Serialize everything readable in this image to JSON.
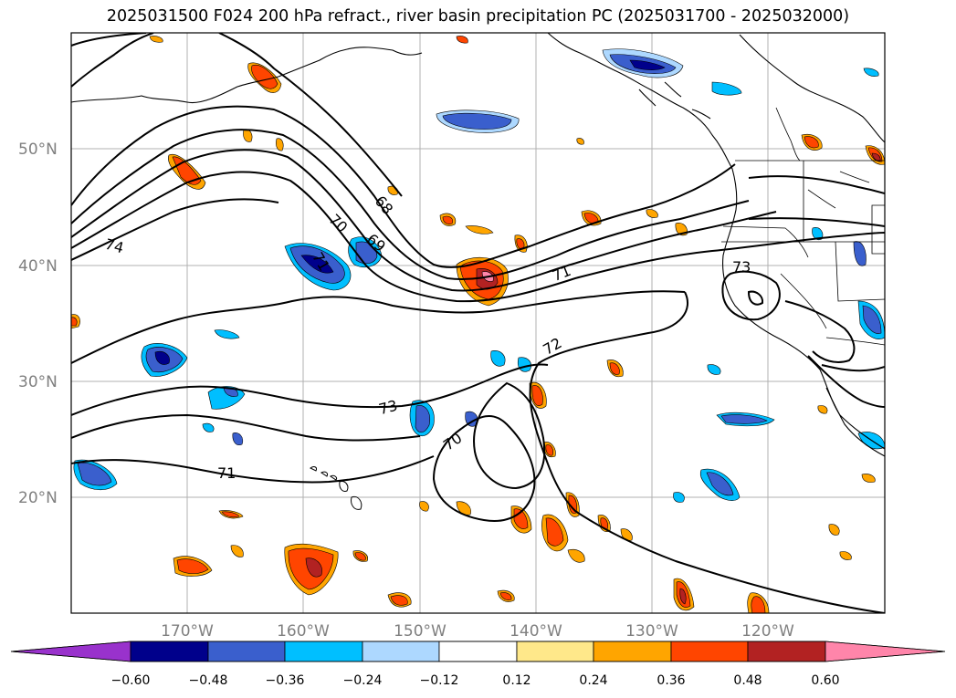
{
  "title": "2025031500 F024 200 hPa refract., river basin precipitation PC (2025031700 - 2025032000)",
  "map": {
    "lat_labels": [
      "50°N",
      "40°N",
      "30°N",
      "20°N"
    ],
    "lon_labels": [
      "170°W",
      "160°W",
      "150°W",
      "140°W",
      "130°W",
      "120°W"
    ],
    "contour_labels": [
      "68",
      "69",
      "70",
      "71",
      "72",
      "73",
      "74",
      "70",
      "71",
      "71",
      "72",
      "73"
    ],
    "contour_levels": [
      68,
      69,
      70,
      71,
      72,
      73,
      74
    ]
  },
  "colorbar": {
    "ticks": [
      "−0.60",
      "−0.48",
      "−0.36",
      "−0.24",
      "−0.12",
      "0.12",
      "0.24",
      "0.36",
      "0.48",
      "0.60"
    ],
    "colors": [
      "#9932cc",
      "#00008b",
      "#3a5fcd",
      "#00bfff",
      "#add8ff",
      "#ffffff",
      "#ffe88a",
      "#ffa500",
      "#ff4500",
      "#b22222",
      "#ff85aa"
    ]
  }
}
